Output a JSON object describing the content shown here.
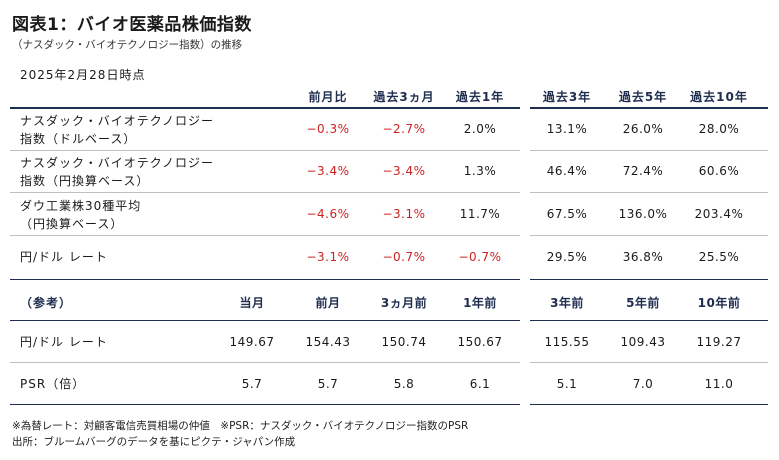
{
  "title": "図表1：バイオ医薬品株価指数",
  "subtitle": "（ナスダック・バイオテクノロジー指数）の推移",
  "as_of": "2025年2月28日時点",
  "period_headers": [
    "前月比",
    "過去3ヵ月",
    "過去1年",
    "過去3年",
    "過去5年",
    "過去10年"
  ],
  "performance_rows": [
    {
      "label_line1": "ナスダック・バイオテクノロジー",
      "label_line2": "指数（ドルベース）",
      "values": [
        "−0.3%",
        "−2.7%",
        "2.0%",
        "13.1%",
        "26.0%",
        "28.0%"
      ]
    },
    {
      "label_line1": "ナスダック・バイオテクノロジー",
      "label_line2": "指数（円換算ベース）",
      "values": [
        "−3.4%",
        "−3.4%",
        "1.3%",
        "46.4%",
        "72.4%",
        "60.6%"
      ]
    },
    {
      "label_line1": "ダウ工業株30種平均",
      "label_line2": "（円換算ベース）",
      "values": [
        "−4.6%",
        "−3.1%",
        "11.7%",
        "67.5%",
        "136.0%",
        "203.4%"
      ]
    },
    {
      "label_line1": "円/ドル レート",
      "label_line2": "",
      "values": [
        "−3.1%",
        "−0.7%",
        "−0.7%",
        "29.5%",
        "36.8%",
        "25.5%"
      ]
    }
  ],
  "negative_color": "#cc2222",
  "reference": {
    "label": "（参考）",
    "headers": [
      "当月",
      "前月",
      "3ヵ月前",
      "1年前",
      "3年前",
      "5年前",
      "10年前"
    ],
    "rows": [
      {
        "label": "円/ドル レート",
        "values": [
          "149.67",
          "154.43",
          "150.74",
          "150.67",
          "115.55",
          "109.43",
          "119.27"
        ]
      },
      {
        "label": "PSR（倍）",
        "values": [
          "5.7",
          "5.7",
          "5.8",
          "6.1",
          "5.1",
          "7.0",
          "11.0"
        ]
      }
    ]
  },
  "notes": {
    "line1": "※為替レート：対顧客電信売買相場の仲値　※PSR：ナスダック・バイオテクノロジー指数のPSR",
    "line2": "出所：ブルームバーグのデータを基にピクテ・ジャパン作成"
  }
}
